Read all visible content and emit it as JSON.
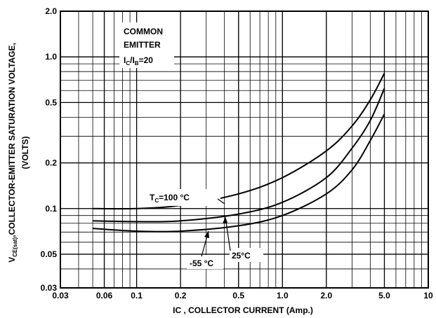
{
  "chart_data": {
    "type": "line",
    "title": "",
    "xlabel": "IC , COLLECTOR CURRENT (Amp.)",
    "ylabel_parts": {
      "main": "V",
      "sub": "CE(sat)",
      "rest": ",COLLECTOR-EMITTER SATURATION  VOLTAGE,"
    },
    "ylabel2": "(VOLTS)",
    "x_scale": "log",
    "y_scale": "log",
    "xlim": [
      0.03,
      10
    ],
    "ylim": [
      0.03,
      2.0
    ],
    "grid": true,
    "x_ticks": [
      {
        "value": 0.03,
        "label": "0.03"
      },
      {
        "value": 0.06,
        "label": "0.06"
      },
      {
        "value": 0.1,
        "label": "0.1"
      },
      {
        "value": 0.2,
        "label": "0.2"
      },
      {
        "value": 0.5,
        "label": "0.5"
      },
      {
        "value": 1.0,
        "label": "1.0"
      },
      {
        "value": 2.0,
        "label": "2.0"
      },
      {
        "value": 5.0,
        "label": "5.0"
      },
      {
        "value": 10,
        "label": "10"
      }
    ],
    "y_ticks": [
      {
        "value": 0.03,
        "label": "0.03"
      },
      {
        "value": 0.05,
        "label": "0.05"
      },
      {
        "value": 0.1,
        "label": "0.1"
      },
      {
        "value": 0.2,
        "label": "0.2"
      },
      {
        "value": 0.5,
        "label": "0.5"
      },
      {
        "value": 1.0,
        "label": "1.0"
      },
      {
        "value": 2.0,
        "label": "2.0"
      }
    ],
    "annotation": {
      "line1": "COMMON",
      "line2": "EMITTER",
      "line3_a": "I",
      "line3_a_sub": "C",
      "line3_b": "/I",
      "line3_b_sub": "B",
      "line3_c": "=20"
    },
    "series": [
      {
        "label_parts": {
          "main": "T",
          "sub": "C",
          "rest": "=100 °C"
        },
        "x": [
          0.05,
          0.1,
          0.2,
          0.5,
          1.0,
          2.0,
          3.0,
          4.0,
          5.0
        ],
        "y": [
          0.1,
          0.1,
          0.105,
          0.125,
          0.16,
          0.24,
          0.35,
          0.52,
          0.78
        ]
      },
      {
        "label_parts": {
          "main": "25",
          "sub": "",
          "rest": "°C"
        },
        "x": [
          0.05,
          0.1,
          0.2,
          0.5,
          1.0,
          2.0,
          3.0,
          4.0,
          5.0
        ],
        "y": [
          0.083,
          0.082,
          0.083,
          0.092,
          0.11,
          0.16,
          0.25,
          0.38,
          0.62
        ]
      },
      {
        "label_parts": {
          "main": "-55 ",
          "sub": "",
          "rest": "°C"
        },
        "x": [
          0.05,
          0.1,
          0.2,
          0.5,
          1.0,
          2.0,
          3.0,
          4.0,
          5.0
        ],
        "y": [
          0.074,
          0.071,
          0.071,
          0.077,
          0.09,
          0.125,
          0.18,
          0.28,
          0.42
        ]
      }
    ]
  }
}
